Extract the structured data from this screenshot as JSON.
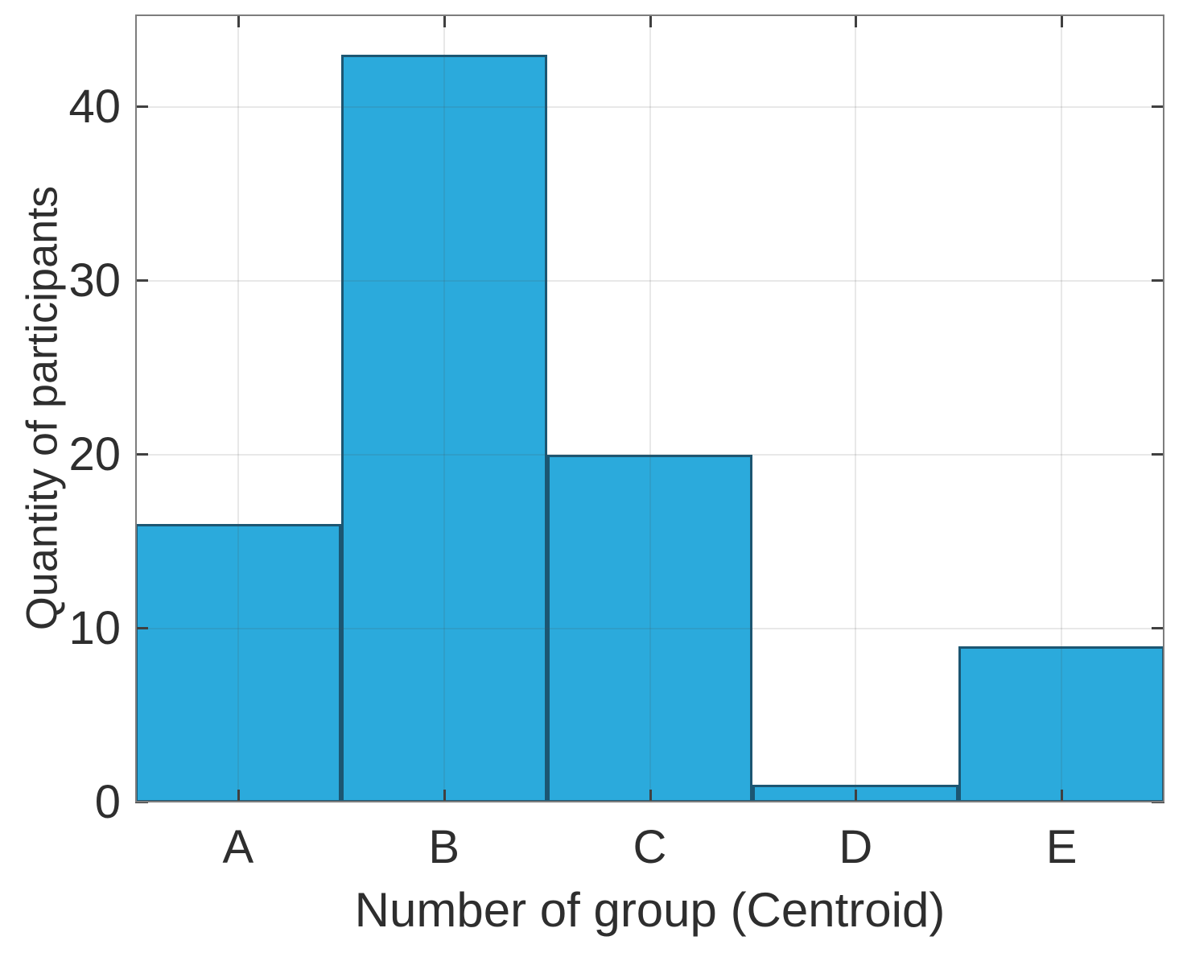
{
  "figure": {
    "background": "#FFFFFF"
  },
  "chart_data": {
    "type": "bar",
    "style": "histogram-flush-bars",
    "categories": [
      "A",
      "B",
      "C",
      "D",
      "E"
    ],
    "values": [
      16,
      43,
      20,
      1,
      9
    ],
    "title": "",
    "xlabel": "Number of group (Centroid)",
    "ylabel": "Quantity of participants",
    "yticks": [
      0,
      10,
      20,
      30,
      40
    ],
    "ylim": [
      0,
      45.3
    ],
    "grid": true,
    "legend": "none",
    "tick_direction": "in-all-four-sides",
    "colors": {
      "bar_fill": "#2BAADC",
      "bar_edge": "#1C5672",
      "axis_box": "#7D7D7D",
      "tick_mark": "#404040",
      "grid_line": "#E2E2E2",
      "text": "#2E2E2E"
    }
  }
}
